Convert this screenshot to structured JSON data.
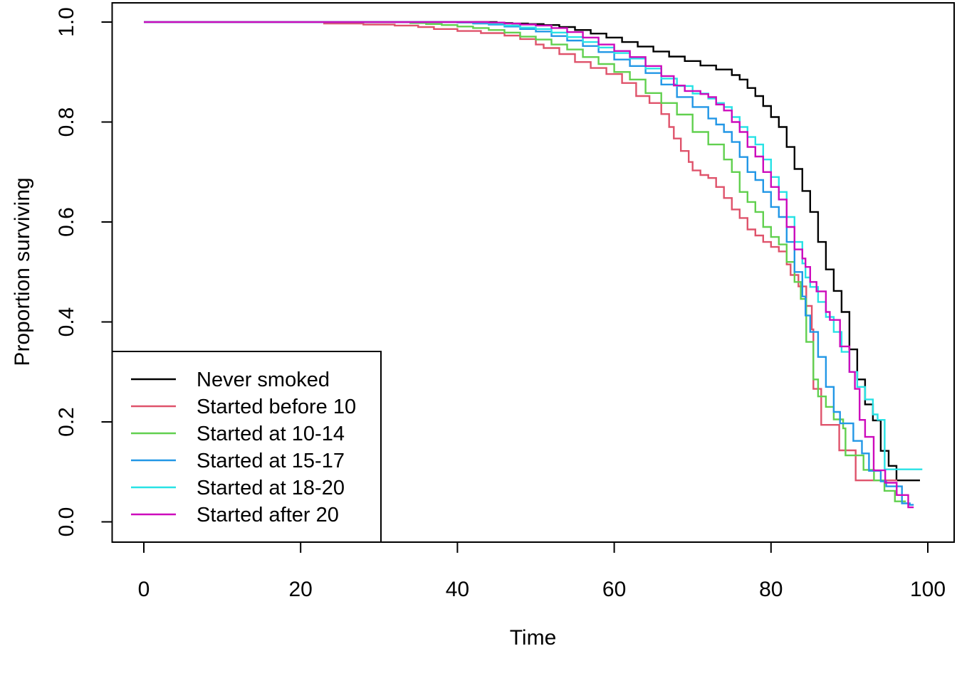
{
  "figure": {
    "background": "#ffffff",
    "type": "survival-plot"
  },
  "chart_data": {
    "type": "line",
    "subtype": "kaplan-meier-step",
    "title": "",
    "xlabel": "Time",
    "ylabel": "Proportion surviving",
    "xlim": [
      0,
      100
    ],
    "ylim": [
      0.0,
      1.0
    ],
    "grid": false,
    "x_ticks": [
      0,
      20,
      40,
      60,
      80,
      100
    ],
    "y_ticks": [
      "0.0",
      "0.2",
      "0.4",
      "0.6",
      "0.8",
      "1.0"
    ],
    "legend": {
      "position": "bottom-left",
      "border": true
    },
    "series": [
      {
        "name": "Never smoked",
        "color": "#000000",
        "points": [
          [
            0,
            1
          ],
          [
            43,
            1
          ],
          [
            45,
            0.998
          ],
          [
            47,
            0.997
          ],
          [
            49,
            0.996
          ],
          [
            51,
            0.994
          ],
          [
            53,
            0.99
          ],
          [
            55,
            0.984
          ],
          [
            57,
            0.977
          ],
          [
            59,
            0.969
          ],
          [
            61,
            0.96
          ],
          [
            63,
            0.951
          ],
          [
            65,
            0.941
          ],
          [
            67,
            0.931
          ],
          [
            69,
            0.922
          ],
          [
            71,
            0.913
          ],
          [
            73,
            0.905
          ],
          [
            75,
            0.894
          ],
          [
            76,
            0.885
          ],
          [
            77,
            0.868
          ],
          [
            78,
            0.852
          ],
          [
            79,
            0.832
          ],
          [
            80,
            0.81
          ],
          [
            81,
            0.79
          ],
          [
            82,
            0.75
          ],
          [
            83,
            0.706
          ],
          [
            84,
            0.662
          ],
          [
            85,
            0.62
          ],
          [
            86,
            0.56
          ],
          [
            87,
            0.505
          ],
          [
            88,
            0.462
          ],
          [
            89,
            0.42
          ],
          [
            90,
            0.345
          ],
          [
            91,
            0.285
          ],
          [
            92,
            0.235
          ],
          [
            93,
            0.203
          ],
          [
            94,
            0.142
          ],
          [
            95,
            0.112
          ],
          [
            96,
            0.083
          ],
          [
            99,
            0.083
          ]
        ]
      },
      {
        "name": "Started before 10",
        "color": "#DF536B",
        "points": [
          [
            0,
            1
          ],
          [
            23,
            0.997
          ],
          [
            28,
            0.995
          ],
          [
            32,
            0.993
          ],
          [
            35,
            0.99
          ],
          [
            37,
            0.986
          ],
          [
            40,
            0.982
          ],
          [
            43,
            0.978
          ],
          [
            46,
            0.973
          ],
          [
            48,
            0.966
          ],
          [
            50,
            0.955
          ],
          [
            51,
            0.948
          ],
          [
            53,
            0.936
          ],
          [
            55,
            0.92
          ],
          [
            57,
            0.908
          ],
          [
            59,
            0.896
          ],
          [
            61,
            0.878
          ],
          [
            62.8,
            0.852
          ],
          [
            64.5,
            0.838
          ],
          [
            66,
            0.816
          ],
          [
            67,
            0.79
          ],
          [
            67.6,
            0.767
          ],
          [
            68.5,
            0.742
          ],
          [
            69.5,
            0.72
          ],
          [
            70,
            0.703
          ],
          [
            71,
            0.694
          ],
          [
            72,
            0.688
          ],
          [
            73,
            0.67
          ],
          [
            74,
            0.648
          ],
          [
            75,
            0.625
          ],
          [
            76,
            0.608
          ],
          [
            77,
            0.585
          ],
          [
            78,
            0.573
          ],
          [
            79,
            0.56
          ],
          [
            80,
            0.55
          ],
          [
            81,
            0.541
          ],
          [
            82,
            0.515
          ],
          [
            82.5,
            0.494
          ],
          [
            83.5,
            0.471
          ],
          [
            84.5,
            0.432
          ],
          [
            85.2,
            0.385
          ],
          [
            85.4,
            0.266
          ],
          [
            86.4,
            0.194
          ],
          [
            88.7,
            0.143
          ],
          [
            90.8,
            0.083
          ],
          [
            96.1,
            0.083
          ]
        ]
      },
      {
        "name": "Started at 10-14",
        "color": "#61D04F",
        "points": [
          [
            0,
            1
          ],
          [
            34,
            0.998
          ],
          [
            36,
            0.996
          ],
          [
            38,
            0.994
          ],
          [
            40,
            0.991
          ],
          [
            42,
            0.988
          ],
          [
            44,
            0.984
          ],
          [
            46,
            0.979
          ],
          [
            48,
            0.971
          ],
          [
            50,
            0.965
          ],
          [
            52,
            0.955
          ],
          [
            54,
            0.945
          ],
          [
            56,
            0.93
          ],
          [
            58,
            0.916
          ],
          [
            60,
            0.9
          ],
          [
            62,
            0.885
          ],
          [
            64,
            0.858
          ],
          [
            66,
            0.838
          ],
          [
            68,
            0.815
          ],
          [
            70,
            0.78
          ],
          [
            72,
            0.755
          ],
          [
            74,
            0.725
          ],
          [
            75,
            0.7
          ],
          [
            76,
            0.66
          ],
          [
            77,
            0.64
          ],
          [
            78,
            0.62
          ],
          [
            79,
            0.59
          ],
          [
            80,
            0.57
          ],
          [
            81,
            0.555
          ],
          [
            82,
            0.52
          ],
          [
            83,
            0.48
          ],
          [
            83.8,
            0.446
          ],
          [
            84.5,
            0.36
          ],
          [
            85.4,
            0.285
          ],
          [
            86,
            0.251
          ],
          [
            87,
            0.23
          ],
          [
            88,
            0.205
          ],
          [
            89.2,
            0.187
          ],
          [
            89.5,
            0.133
          ],
          [
            91.8,
            0.104
          ],
          [
            95.8,
            0.041
          ],
          [
            97.2,
            0.041
          ]
        ]
      },
      {
        "name": "Started at 15-17",
        "color": "#2297E6",
        "points": [
          [
            0,
            1
          ],
          [
            40,
            0.999
          ],
          [
            42,
            0.997
          ],
          [
            44,
            0.995
          ],
          [
            46,
            0.991
          ],
          [
            48,
            0.986
          ],
          [
            50,
            0.981
          ],
          [
            52,
            0.972
          ],
          [
            54,
            0.963
          ],
          [
            56,
            0.952
          ],
          [
            58,
            0.94
          ],
          [
            60,
            0.925
          ],
          [
            62,
            0.912
          ],
          [
            64,
            0.898
          ],
          [
            66,
            0.875
          ],
          [
            68,
            0.85
          ],
          [
            70,
            0.83
          ],
          [
            72,
            0.807
          ],
          [
            73,
            0.795
          ],
          [
            74,
            0.78
          ],
          [
            75,
            0.76
          ],
          [
            76,
            0.73
          ],
          [
            77,
            0.7
          ],
          [
            78,
            0.684
          ],
          [
            79,
            0.66
          ],
          [
            80,
            0.63
          ],
          [
            81,
            0.61
          ],
          [
            82,
            0.56
          ],
          [
            83,
            0.5
          ],
          [
            84,
            0.451
          ],
          [
            84.4,
            0.413
          ],
          [
            85,
            0.38
          ],
          [
            86,
            0.33
          ],
          [
            87,
            0.27
          ],
          [
            88,
            0.22
          ],
          [
            88.8,
            0.197
          ],
          [
            90.5,
            0.162
          ],
          [
            91.6,
            0.137
          ],
          [
            92.5,
            0.102
          ],
          [
            94,
            0.081
          ],
          [
            94.7,
            0.071
          ],
          [
            96.7,
            0.037
          ],
          [
            97.7,
            0.034
          ],
          [
            98.2,
            0.034
          ]
        ]
      },
      {
        "name": "Started at 18-20",
        "color": "#28E2E5",
        "points": [
          [
            0,
            1
          ],
          [
            42,
            0.999
          ],
          [
            44,
            0.997
          ],
          [
            46,
            0.993
          ],
          [
            48,
            0.989
          ],
          [
            50,
            0.986
          ],
          [
            52,
            0.979
          ],
          [
            54,
            0.97
          ],
          [
            56,
            0.96
          ],
          [
            58,
            0.949
          ],
          [
            60,
            0.938
          ],
          [
            62,
            0.927
          ],
          [
            64,
            0.907
          ],
          [
            66,
            0.887
          ],
          [
            68,
            0.872
          ],
          [
            70,
            0.857
          ],
          [
            72,
            0.847
          ],
          [
            73,
            0.838
          ],
          [
            74,
            0.83
          ],
          [
            75,
            0.81
          ],
          [
            76,
            0.79
          ],
          [
            77,
            0.77
          ],
          [
            78,
            0.755
          ],
          [
            79,
            0.725
          ],
          [
            80,
            0.69
          ],
          [
            81,
            0.66
          ],
          [
            82,
            0.61
          ],
          [
            83,
            0.56
          ],
          [
            84,
            0.517
          ],
          [
            84.4,
            0.489
          ],
          [
            85,
            0.47
          ],
          [
            86,
            0.44
          ],
          [
            87,
            0.41
          ],
          [
            88,
            0.38
          ],
          [
            89,
            0.34
          ],
          [
            90,
            0.3
          ],
          [
            91,
            0.27
          ],
          [
            92,
            0.245
          ],
          [
            93,
            0.215
          ],
          [
            93.6,
            0.204
          ],
          [
            94.5,
            0.105
          ],
          [
            99.3,
            0.105
          ]
        ]
      },
      {
        "name": "Started after 20",
        "color": "#CD0BBC",
        "points": [
          [
            0,
            1
          ],
          [
            44,
            0.999
          ],
          [
            46,
            0.997
          ],
          [
            48,
            0.995
          ],
          [
            50,
            0.993
          ],
          [
            52,
            0.988
          ],
          [
            54,
            0.98
          ],
          [
            56,
            0.969
          ],
          [
            58,
            0.955
          ],
          [
            60,
            0.942
          ],
          [
            62,
            0.93
          ],
          [
            64,
            0.912
          ],
          [
            66,
            0.892
          ],
          [
            67.6,
            0.873
          ],
          [
            69,
            0.862
          ],
          [
            71,
            0.856
          ],
          [
            72,
            0.85
          ],
          [
            73,
            0.835
          ],
          [
            74,
            0.823
          ],
          [
            75,
            0.8
          ],
          [
            76,
            0.78
          ],
          [
            77,
            0.75
          ],
          [
            78,
            0.731
          ],
          [
            79,
            0.7
          ],
          [
            80,
            0.67
          ],
          [
            81,
            0.645
          ],
          [
            82,
            0.59
          ],
          [
            83,
            0.545
          ],
          [
            84,
            0.527
          ],
          [
            84.4,
            0.51
          ],
          [
            85,
            0.48
          ],
          [
            85.8,
            0.461
          ],
          [
            87,
            0.42
          ],
          [
            87.5,
            0.404
          ],
          [
            88.8,
            0.351
          ],
          [
            90,
            0.3
          ],
          [
            90.7,
            0.266
          ],
          [
            91.3,
            0.204
          ],
          [
            92,
            0.17
          ],
          [
            93.1,
            0.103
          ],
          [
            97.5,
            0.029
          ],
          [
            98.2,
            0.029
          ]
        ]
      }
    ]
  }
}
